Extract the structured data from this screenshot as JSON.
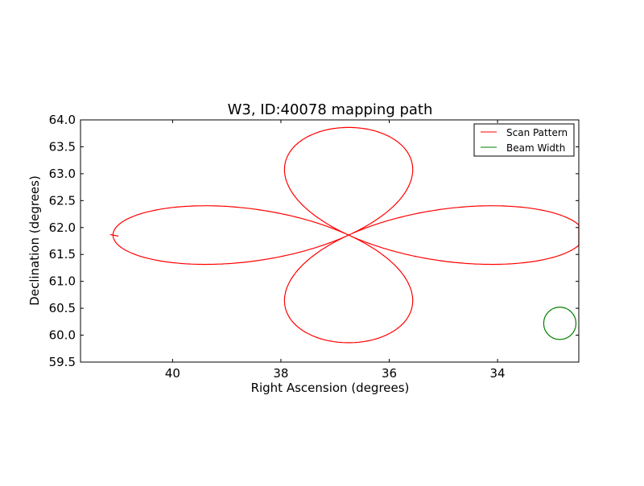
{
  "chart_data": {
    "type": "line",
    "title": "W3, ID:40078 mapping path",
    "xlabel": "Right Ascension (degrees)",
    "ylabel": "Declination (degrees)",
    "xlim": [
      41.7,
      32.5
    ],
    "ylim": [
      59.5,
      64.0
    ],
    "x_inverted": true,
    "xticks": [
      40,
      38,
      36,
      34
    ],
    "xtick_labels": [
      "40",
      "38",
      "36",
      "34"
    ],
    "yticks": [
      59.5,
      60.0,
      60.5,
      61.0,
      61.5,
      62.0,
      62.5,
      63.0,
      63.5,
      64.0
    ],
    "ytick_labels": [
      "59.5",
      "60.0",
      "60.5",
      "61.0",
      "61.5",
      "62.0",
      "62.5",
      "63.0",
      "63.5",
      "64.0"
    ],
    "grid": false,
    "legend": {
      "position": "top-right",
      "entries": [
        "Scan Pattern",
        "Beam Width"
      ]
    },
    "series": [
      {
        "name": "Scan Pattern",
        "color": "#ff0000",
        "description_points": {
          "center": [
            36.75,
            61.86
          ],
          "top_lobe_peak": [
            36.75,
            63.86
          ],
          "bottom_lobe_min": [
            36.75,
            59.86
          ],
          "left_lobe_extent": [
            41.1,
            61.86
          ],
          "right_lobe_extent": [
            32.5,
            61.86
          ],
          "lobe_half_width_dec": 0.55,
          "lobe_half_width_ra": 1.15
        },
        "start": [
          41.15,
          61.87
        ],
        "end": [
          41.0,
          61.84
        ]
      },
      {
        "name": "Beam Width",
        "color": "#008000",
        "center": [
          32.85,
          60.22
        ],
        "radius_dec": 0.3
      }
    ]
  }
}
